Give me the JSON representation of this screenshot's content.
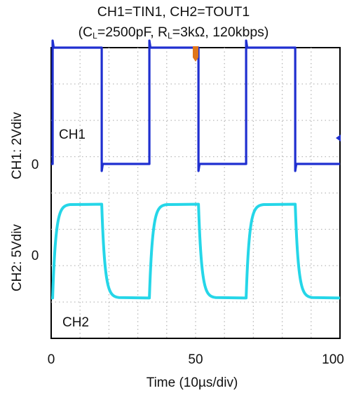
{
  "chart_data": {
    "type": "line",
    "title_line1": "CH1=TIN1, CH2=TOUT1",
    "title_line2": {
      "pre": "(C",
      "c_sub": "L",
      "mid": "=2500pF, R",
      "r_sub": "L",
      "post": "=3kΩ, 120kbps)"
    },
    "xlabel": "Time (10µs/div)",
    "x_ticks": [
      "0",
      "50",
      "100"
    ],
    "xlim": [
      0,
      100
    ],
    "ylabels": [
      "CH2: 5Vdiv",
      "CH1: 2Vdiv"
    ],
    "zero_labels": [
      "0",
      "0"
    ],
    "channel_labels": [
      "CH1",
      "CH2"
    ],
    "grid": true,
    "series": [
      {
        "name": "CH1",
        "color": "#1f2fd0",
        "high_v": 6.4,
        "low_v": 0.0,
        "scale_v_per_div": 2,
        "fall_edges_us": [
          17.5,
          51,
          84.5
        ],
        "rise_edges_us": [
          0.5,
          34,
          67.5
        ]
      },
      {
        "name": "CH2",
        "color": "#25d6e8",
        "high_v": 6.7,
        "low_v": -6.2,
        "scale_v_per_div": 5,
        "rise_edges_us": [
          0.5,
          34,
          67.5
        ],
        "fall_edges_us": [
          17.5,
          51,
          84.5
        ]
      }
    ],
    "trigger_marker_color": "#e0761a",
    "offset_marker_color": "#1f2fd0"
  }
}
